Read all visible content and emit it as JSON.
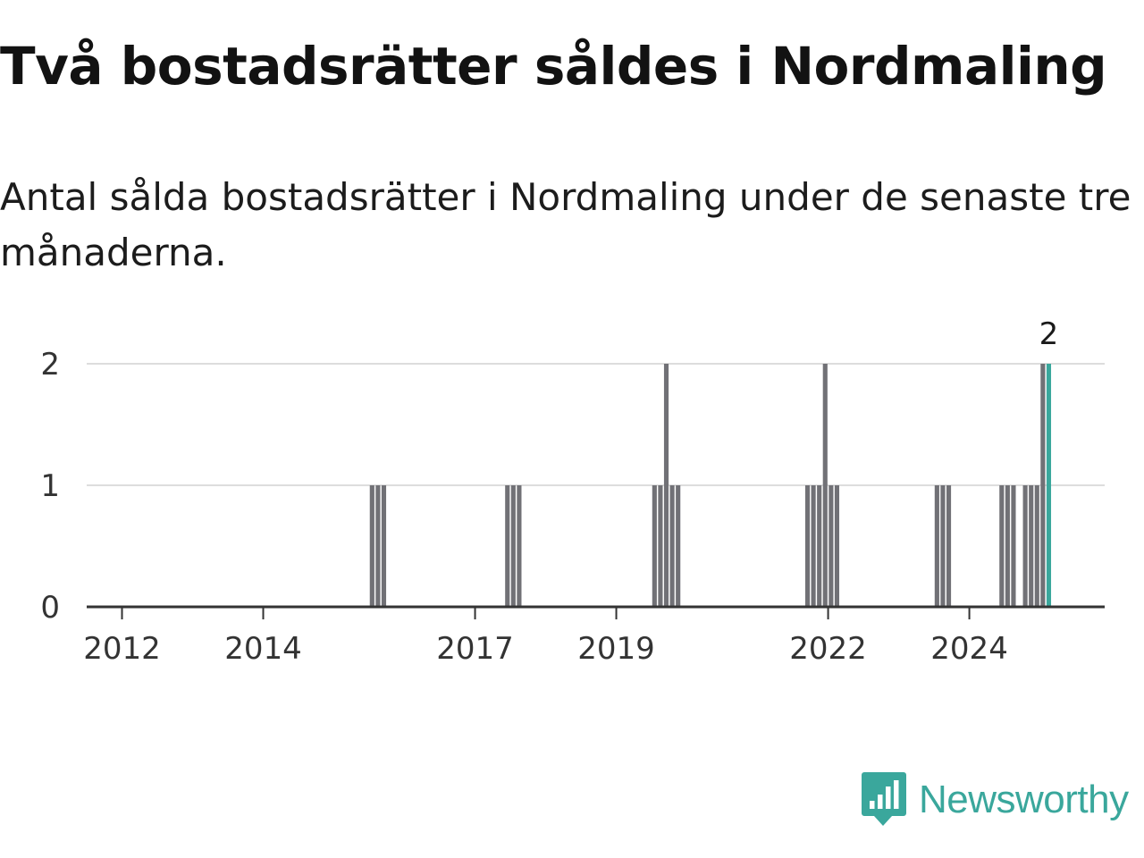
{
  "title": "Två bostadsrätter såldes i Nordmaling",
  "subtitle": "Antal sålda bostadsrätter i Nordmaling under de senaste tre månaderna.",
  "brand": {
    "name": "Newsworthy",
    "color": "#3aa79c",
    "icon": "newsworthy-logo-icon"
  },
  "colors": {
    "bar": "#717176",
    "highlight": "#3aa79c",
    "grid": "#dddddd",
    "axis": "#333333"
  },
  "chart_data": {
    "type": "bar",
    "title": "Två bostadsrätter såldes i Nordmaling",
    "subtitle": "Antal sålda bostadsrätter i Nordmaling under de senaste tre månaderna.",
    "xlabel": "",
    "ylabel": "",
    "x_axis": {
      "type": "time",
      "ticks": [
        "2012",
        "2014",
        "2017",
        "2019",
        "2022",
        "2024"
      ],
      "range": [
        "2011-07",
        "2025-12"
      ]
    },
    "y_axis": {
      "range": [
        0,
        2
      ],
      "ticks": [
        0,
        1,
        2
      ]
    },
    "grid": true,
    "legend": "none",
    "bars": [
      {
        "x": "2015-07",
        "value": 1
      },
      {
        "x": "2015-08",
        "value": 1
      },
      {
        "x": "2015-09",
        "value": 1
      },
      {
        "x": "2017-06",
        "value": 1
      },
      {
        "x": "2017-07",
        "value": 1
      },
      {
        "x": "2017-08",
        "value": 1
      },
      {
        "x": "2019-07",
        "value": 1
      },
      {
        "x": "2019-08",
        "value": 1
      },
      {
        "x": "2019-09",
        "value": 2
      },
      {
        "x": "2019-10",
        "value": 1
      },
      {
        "x": "2019-11",
        "value": 1
      },
      {
        "x": "2021-09",
        "value": 1
      },
      {
        "x": "2021-10",
        "value": 1
      },
      {
        "x": "2021-11",
        "value": 1
      },
      {
        "x": "2021-12",
        "value": 2
      },
      {
        "x": "2022-01",
        "value": 1
      },
      {
        "x": "2022-02",
        "value": 1
      },
      {
        "x": "2023-07",
        "value": 1
      },
      {
        "x": "2023-08",
        "value": 1
      },
      {
        "x": "2023-09",
        "value": 1
      },
      {
        "x": "2024-06",
        "value": 1
      },
      {
        "x": "2024-07",
        "value": 1
      },
      {
        "x": "2024-08",
        "value": 1
      },
      {
        "x": "2024-10",
        "value": 1
      },
      {
        "x": "2024-11",
        "value": 1
      },
      {
        "x": "2024-12",
        "value": 1
      },
      {
        "x": "2025-01",
        "value": 2
      },
      {
        "x": "2025-02",
        "value": 2,
        "highlight": true,
        "label": "2"
      }
    ]
  }
}
